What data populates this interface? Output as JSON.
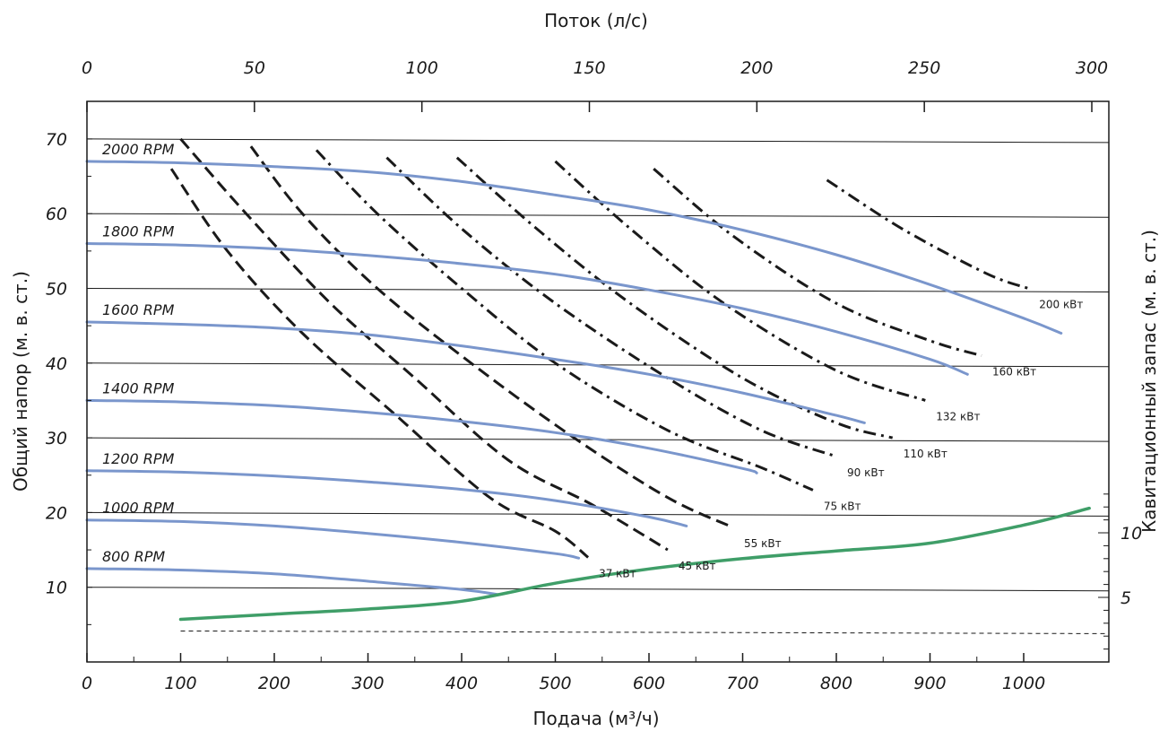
{
  "chart_data": {
    "type": "line",
    "x_bottom": {
      "label": "Подача (м³/ч)",
      "ticks": [
        "0",
        "100",
        "200",
        "300",
        "400",
        "500",
        "600",
        "700",
        "800",
        "900",
        "1000"
      ],
      "range": [
        0,
        1090
      ]
    },
    "x_top": {
      "label": "Поток (л/с)",
      "ticks": [
        "0",
        "50",
        "100",
        "150",
        "200",
        "250",
        "300"
      ],
      "range": [
        0,
        302.8
      ]
    },
    "y_left": {
      "label": "Общий напор (м. в. ст.)",
      "ticks": [
        "10",
        "20",
        "30",
        "40",
        "50",
        "60",
        "70"
      ],
      "range": [
        0,
        75
      ]
    },
    "y_right": {
      "label": "Кавитационный запас (м. в. ст.)",
      "ticks": [
        "5",
        "10"
      ]
    },
    "grid": "horizontal",
    "rpm_curves": [
      {
        "label": "2000 RPM",
        "x": [
          0,
          100,
          200,
          300,
          400,
          500,
          600,
          700,
          800,
          900,
          1000,
          1040
        ],
        "y": [
          67,
          66.8,
          66.3,
          65.6,
          64.3,
          62.5,
          60.5,
          57.8,
          54.5,
          50.5,
          46,
          44
        ]
      },
      {
        "label": "1800 RPM",
        "x": [
          0,
          100,
          200,
          300,
          400,
          500,
          600,
          700,
          800,
          900,
          940
        ],
        "y": [
          56,
          55.8,
          55.3,
          54.4,
          53.3,
          51.9,
          49.8,
          47.3,
          44.2,
          40.5,
          38.5
        ]
      },
      {
        "label": "1600 RPM",
        "x": [
          0,
          100,
          200,
          300,
          400,
          500,
          600,
          700,
          800,
          830
        ],
        "y": [
          45.5,
          45.2,
          44.7,
          43.8,
          42.3,
          40.5,
          38.5,
          36,
          33,
          32
        ]
      },
      {
        "label": "1400 RPM",
        "x": [
          0,
          100,
          200,
          300,
          400,
          500,
          600,
          700,
          715
        ],
        "y": [
          35,
          34.8,
          34.3,
          33.4,
          32.2,
          30.7,
          28.6,
          25.9,
          25.3
        ]
      },
      {
        "label": "1200 RPM",
        "x": [
          0,
          100,
          200,
          300,
          400,
          500,
          600,
          640
        ],
        "y": [
          25.6,
          25.4,
          24.9,
          24.1,
          23.1,
          21.6,
          19.4,
          18.2
        ]
      },
      {
        "label": "1000 RPM",
        "x": [
          0,
          100,
          200,
          300,
          400,
          500,
          525
        ],
        "y": [
          19,
          18.8,
          18.2,
          17.2,
          16,
          14.5,
          13.9
        ]
      },
      {
        "label": "800 RPM",
        "x": [
          0,
          100,
          200,
          300,
          400,
          440
        ],
        "y": [
          12.5,
          12.3,
          11.8,
          10.8,
          9.7,
          9
        ]
      }
    ],
    "power_curves": [
      {
        "label": "37 кВт",
        "style": "dash",
        "x": [
          90,
          150,
          230,
          330,
          430,
          500,
          535
        ],
        "y": [
          66,
          55,
          44,
          33,
          22,
          17.5,
          14
        ]
      },
      {
        "label": "45 кВт",
        "style": "dash",
        "x": [
          100,
          170,
          260,
          350,
          450,
          540,
          620
        ],
        "y": [
          70,
          60,
          48,
          38,
          27,
          21,
          15
        ]
      },
      {
        "label": "55 кВт",
        "style": "dash",
        "x": [
          175,
          230,
          310,
          410,
          520,
          620,
          690
        ],
        "y": [
          69,
          60,
          50,
          40,
          30,
          22,
          18
        ]
      },
      {
        "label": "75 кВт",
        "style": "dash-dot",
        "x": [
          245,
          310,
          400,
          500,
          620,
          720,
          775
        ],
        "y": [
          68.5,
          60,
          50,
          40,
          31,
          26,
          23
        ]
      },
      {
        "label": "90 кВт",
        "style": "dash-dot",
        "x": [
          320,
          400,
          500,
          620,
          720,
          800
        ],
        "y": [
          67.5,
          58,
          48,
          38,
          31,
          27.5
        ]
      },
      {
        "label": "110 кВт",
        "style": "dash-dot",
        "x": [
          395,
          480,
          580,
          700,
          800,
          860
        ],
        "y": [
          67.5,
          58,
          48,
          38,
          32,
          30
        ]
      },
      {
        "label": "132 кВт",
        "style": "dash-dot",
        "x": [
          500,
          580,
          680,
          800,
          895
        ],
        "y": [
          67,
          58,
          48,
          39,
          35
        ]
      },
      {
        "label": "160 кВт",
        "style": "dash-dot",
        "x": [
          605,
          690,
          800,
          900,
          955
        ],
        "y": [
          66,
          57,
          48,
          43,
          41
        ]
      },
      {
        "label": "200 кВт",
        "style": "dash-dot",
        "x": [
          790,
          870,
          960,
          1005
        ],
        "y": [
          64.5,
          58,
          52,
          50
        ]
      }
    ],
    "npsh_curve": {
      "x": [
        100,
        200,
        300,
        400,
        500,
        600,
        700,
        800,
        900,
        1000,
        1070
      ],
      "y": [
        3.3,
        3.7,
        4.1,
        4.7,
        6.1,
        7.2,
        8,
        8.6,
        9.2,
        10.6,
        11.9
      ]
    },
    "npsh_reference": {
      "y": 2.4
    },
    "colors": {
      "rpm": "#7a96cc",
      "npsh": "#3f9e68",
      "power": "#1a1a1a",
      "grid": "#1a1a1a"
    }
  }
}
